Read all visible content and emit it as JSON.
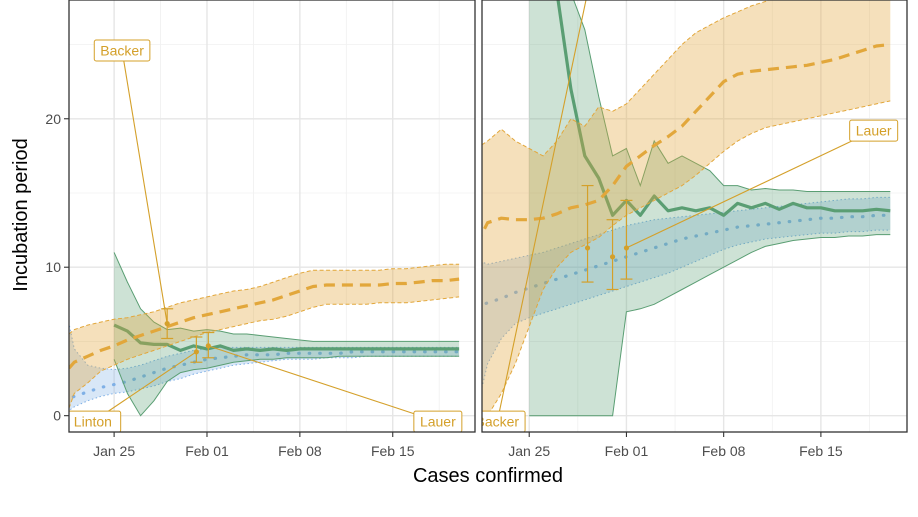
{
  "chart_data": {
    "type": "line",
    "xlabel": "Cases confirmed",
    "ylabel": "Incubation period",
    "x_ticks": [
      {
        "day": 25,
        "label": "Jan 25"
      },
      {
        "day": 32,
        "label": "Feb 01"
      },
      {
        "day": 39,
        "label": "Feb 08"
      },
      {
        "day": 46,
        "label": "Feb 15"
      }
    ],
    "y_ticks": [
      0,
      10,
      20
    ],
    "colors": {
      "blue": "#7fb0e6",
      "green": "#5a9e73",
      "orange": "#e2a73b",
      "annotation": "#d4a02a"
    },
    "panels": [
      {
        "name": "left",
        "xlim": [
          21.6,
          52.2
        ],
        "ylim": [
          -1.1,
          28
        ],
        "bands": [
          {
            "series": "blue",
            "x": [
              21.2,
              22,
              23,
              24,
              25,
              26,
              27,
              28,
              29,
              30,
              31,
              32,
              33,
              34,
              35,
              36,
              37,
              38,
              39,
              40,
              41,
              42,
              43,
              44,
              45,
              46,
              47,
              48,
              49,
              50,
              51
            ],
            "mid": [
              1.0,
              1.3,
              1.6,
              1.9,
              2.1,
              2.3,
              2.6,
              2.9,
              3.2,
              3.4,
              3.6,
              3.8,
              3.9,
              4.0,
              4.1,
              4.1,
              4.1,
              4.2,
              4.2,
              4.2,
              4.2,
              4.2,
              4.3,
              4.3,
              4.3,
              4.3,
              4.3,
              4.3,
              4.3,
              4.3,
              4.3
            ],
            "low": [
              0.1,
              0.6,
              1.0,
              1.3,
              1.5,
              1.6,
              1.8,
              2.0,
              2.3,
              2.5,
              2.8,
              3.0,
              3.2,
              3.4,
              3.5,
              3.6,
              3.7,
              3.8,
              3.8,
              3.8,
              3.9,
              3.9,
              3.9,
              4.0,
              4.0,
              4.0,
              4.0,
              4.0,
              4.0,
              4.0,
              4.0
            ],
            "high": [
              7.9,
              4.5,
              3.4,
              3.2,
              3.1,
              3.2,
              3.4,
              3.7,
              4.0,
              4.2,
              4.4,
              4.5,
              4.6,
              4.6,
              4.6,
              4.6,
              4.6,
              4.6,
              4.6,
              4.6,
              4.6,
              4.6,
              4.6,
              4.6,
              4.6,
              4.6,
              4.6,
              4.6,
              4.6,
              4.6,
              4.6
            ]
          },
          {
            "series": "green",
            "x": [
              25,
              26,
              27,
              28,
              29,
              30,
              31,
              32,
              33,
              34,
              35,
              36,
              37,
              38,
              39,
              40,
              41,
              42,
              43,
              44,
              45,
              46,
              47,
              48,
              49,
              50,
              51
            ],
            "mid": [
              6.1,
              5.7,
              4.9,
              4.8,
              4.8,
              4.4,
              4.7,
              4.5,
              4.7,
              4.4,
              4.5,
              4.4,
              4.5,
              4.4,
              4.5,
              4.5,
              4.5,
              4.5,
              4.5,
              4.5,
              4.5,
              4.5,
              4.5,
              4.5,
              4.5,
              4.5,
              4.5
            ],
            "low": [
              3.8,
              1.5,
              0.0,
              1.0,
              2.3,
              2.9,
              3.1,
              3.2,
              3.4,
              3.6,
              3.7,
              3.8,
              3.8,
              3.9,
              3.9,
              3.9,
              3.9,
              4.0,
              4.0,
              4.0,
              4.0,
              4.0,
              4.0,
              4.0,
              4.0,
              4.0,
              4.0
            ],
            "high": [
              11.0,
              9.0,
              7.2,
              6.3,
              5.8,
              5.9,
              5.7,
              5.8,
              5.7,
              5.5,
              5.5,
              5.4,
              5.3,
              5.2,
              5.1,
              5.0,
              5.0,
              5.0,
              5.0,
              5.0,
              5.0,
              5.0,
              5.0,
              5.0,
              5.0,
              5.0,
              5.0
            ]
          },
          {
            "series": "orange",
            "x": [
              21.6,
              22,
              23,
              24,
              25,
              26,
              27,
              28,
              29,
              30,
              31,
              32,
              33,
              34,
              35,
              36,
              37,
              38,
              39,
              40,
              41,
              42,
              43,
              44,
              45,
              46,
              47,
              48,
              49,
              50,
              51
            ],
            "mid": [
              3.2,
              3.6,
              4.0,
              4.4,
              4.7,
              5.1,
              5.4,
              5.7,
              6.0,
              6.3,
              6.6,
              6.8,
              7.0,
              7.2,
              7.4,
              7.6,
              7.8,
              8.1,
              8.4,
              8.7,
              8.8,
              8.8,
              8.8,
              8.8,
              8.8,
              8.9,
              8.9,
              9.0,
              9.1,
              9.1,
              9.2
            ],
            "low": [
              0.5,
              1.5,
              2.2,
              3.0,
              3.4,
              3.8,
              4.1,
              4.4,
              4.7,
              5.0,
              5.3,
              5.6,
              5.8,
              6.0,
              6.2,
              6.4,
              6.5,
              6.7,
              7.0,
              7.3,
              7.5,
              7.5,
              7.5,
              7.5,
              7.6,
              7.6,
              7.6,
              7.7,
              7.8,
              7.9,
              8.0
            ],
            "high": [
              5.5,
              5.8,
              6.1,
              6.3,
              6.5,
              6.6,
              6.8,
              7.0,
              7.3,
              7.6,
              7.8,
              8.0,
              8.2,
              8.4,
              8.5,
              8.7,
              9.0,
              9.3,
              9.6,
              9.8,
              9.8,
              9.8,
              9.8,
              9.8,
              9.8,
              9.9,
              9.9,
              10.0,
              10.1,
              10.2,
              10.2
            ]
          }
        ],
        "points": [
          {
            "x": 29.0,
            "y": 6.2,
            "low": 5.2,
            "high": 7.2
          },
          {
            "x": 31.2,
            "y": 4.3,
            "low": 3.6,
            "high": 5.3
          },
          {
            "x": 32.1,
            "y": 4.7,
            "low": 3.9,
            "high": 5.6
          }
        ],
        "labels": [
          {
            "text": "Backer",
            "x": 25.6,
            "y": 24.6,
            "tx": 29.0,
            "ty": 6.2
          },
          {
            "text": "Linton",
            "x": 23.4,
            "y": -0.4,
            "tx": 31.2,
            "ty": 4.3
          },
          {
            "text": "Lauer",
            "x": 49.4,
            "y": -0.4,
            "tx": 32.1,
            "ty": 4.7
          }
        ]
      },
      {
        "name": "right",
        "xlim": [
          21.6,
          52.2
        ],
        "ylim": [
          -1.1,
          28
        ],
        "bands": [
          {
            "series": "blue",
            "x": [
              21.2,
              22,
              23,
              24,
              25,
              26,
              27,
              28,
              29,
              30,
              31,
              32,
              33,
              34,
              35,
              36,
              37,
              38,
              39,
              40,
              41,
              42,
              43,
              44,
              45,
              46,
              47,
              48,
              49,
              50,
              51
            ],
            "mid": [
              7.3,
              7.6,
              7.9,
              8.3,
              8.6,
              8.9,
              9.2,
              9.5,
              9.8,
              10.1,
              10.4,
              10.7,
              11.0,
              11.3,
              11.6,
              11.9,
              12.1,
              12.3,
              12.5,
              12.7,
              12.8,
              12.9,
              13.0,
              13.1,
              13.2,
              13.3,
              13.3,
              13.4,
              13.4,
              13.5,
              13.5
            ],
            "low": [
              0.3,
              3.5,
              5.2,
              6.2,
              6.6,
              6.9,
              7.2,
              7.5,
              7.8,
              8.1,
              8.4,
              8.7,
              9.0,
              9.3,
              9.6,
              10.0,
              10.4,
              10.8,
              11.2,
              11.5,
              11.7,
              11.9,
              12.0,
              12.1,
              12.2,
              12.3,
              12.3,
              12.4,
              12.4,
              12.5,
              12.5
            ],
            "high": [
              10.5,
              10.2,
              10.4,
              10.6,
              10.8,
              11.0,
              11.3,
              11.6,
              11.9,
              12.2,
              12.5,
              12.8,
              13.0,
              13.2,
              13.3,
              13.4,
              13.5,
              13.6,
              13.7,
              13.8,
              13.9,
              14.0,
              14.1,
              14.2,
              14.3,
              14.4,
              14.5,
              14.6,
              14.6,
              14.7,
              14.7
            ]
          },
          {
            "series": "green",
            "x": [
              25,
              26,
              27,
              28,
              29,
              30,
              31,
              32,
              33,
              34,
              35,
              36,
              37,
              38,
              39,
              40,
              41,
              42,
              43,
              44,
              45,
              46,
              47,
              48,
              49,
              50,
              51
            ],
            "mid": [
              28.5,
              28.5,
              28.5,
              22.0,
              17.5,
              16.0,
              13.5,
              14.5,
              13.5,
              14.8,
              13.8,
              14.0,
              13.8,
              14.0,
              13.5,
              14.3,
              14.0,
              14.3,
              13.9,
              14.3,
              14.0,
              14.0,
              13.8,
              13.8,
              13.8,
              13.9,
              13.8
            ],
            "low": [
              0.0,
              0.0,
              0.0,
              0.0,
              0.0,
              0.0,
              0.0,
              7.0,
              7.2,
              7.5,
              8.0,
              8.5,
              9.0,
              9.5,
              10.0,
              10.5,
              11.0,
              11.4,
              11.6,
              11.8,
              11.9,
              12.0,
              12.0,
              12.1,
              12.1,
              12.2,
              12.2
            ],
            "high": [
              28.5,
              28.5,
              28.5,
              28.5,
              26.0,
              21.5,
              17.5,
              18.0,
              15.5,
              18.5,
              17.0,
              17.5,
              17.0,
              16.5,
              15.5,
              15.5,
              15.2,
              15.3,
              15.2,
              15.2,
              15.1,
              15.1,
              15.1,
              15.1,
              15.1,
              15.1,
              15.1
            ]
          },
          {
            "series": "orange",
            "x": [
              21.2,
              22,
              23,
              24,
              25,
              26,
              27,
              28,
              29,
              30,
              31,
              32,
              33,
              34,
              35,
              36,
              37,
              38,
              39,
              40,
              41,
              42,
              43,
              44,
              45,
              46,
              47,
              48,
              49,
              50,
              51
            ],
            "mid": [
              11.5,
              13.0,
              13.3,
              13.2,
              13.2,
              13.3,
              13.6,
              14.0,
              14.2,
              14.5,
              15.5,
              16.8,
              17.5,
              18.2,
              18.8,
              19.5,
              20.5,
              21.5,
              22.5,
              23.0,
              23.2,
              23.3,
              23.4,
              23.5,
              23.6,
              23.8,
              24.0,
              24.3,
              24.6,
              24.9,
              25.0
            ],
            "low": [
              0.0,
              0.0,
              1.5,
              3.5,
              6.0,
              8.5,
              10.0,
              11.0,
              11.5,
              12.0,
              12.8,
              13.5,
              14.0,
              14.5,
              15.0,
              15.5,
              16.2,
              17.0,
              17.8,
              18.5,
              19.0,
              19.4,
              19.6,
              19.8,
              20.0,
              20.2,
              20.4,
              20.6,
              20.8,
              21.0,
              21.2
            ],
            "high": [
              18.0,
              18.5,
              19.3,
              18.5,
              18.0,
              17.5,
              18.5,
              20.0,
              19.5,
              20.8,
              20.5,
              21.0,
              22.0,
              23.0,
              24.0,
              25.0,
              25.8,
              26.3,
              26.8,
              27.2,
              27.6,
              27.9,
              28.3,
              28.5,
              28.5,
              28.5,
              28.5,
              28.5,
              28.5,
              28.5,
              28.5
            ]
          }
        ],
        "points": [
          {
            "x": 29.2,
            "y": 11.3,
            "low": 9.0,
            "high": 15.5
          },
          {
            "x": 31.0,
            "y": 10.7,
            "low": 8.5,
            "high": 13.2
          },
          {
            "x": 32.0,
            "y": 11.3,
            "low": 9.2,
            "high": 14.5
          }
        ],
        "labels": [
          {
            "text": "Backer",
            "x": 22.7,
            "y": -0.4,
            "tx": 29.2,
            "ty": 28.5
          },
          {
            "text": "Lauer",
            "x": 49.8,
            "y": 19.2,
            "tx": 32.0,
            "ty": 11.3
          }
        ]
      }
    ]
  }
}
